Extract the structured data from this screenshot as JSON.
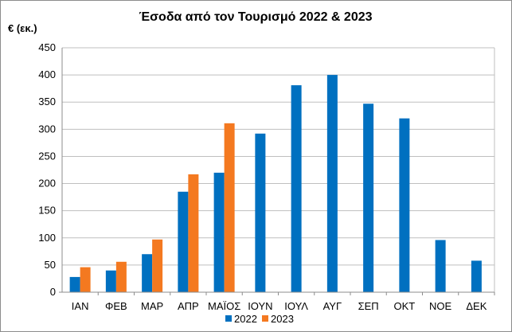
{
  "chart_data": {
    "type": "bar",
    "title": "Έσοδα από τον Τουρισμό 2022 & 2023",
    "ylabel": "€ (εκ.)",
    "xlabel": "",
    "ylim": [
      0,
      450
    ],
    "yticks": [
      0,
      50,
      100,
      150,
      200,
      250,
      300,
      350,
      400,
      450
    ],
    "grid": true,
    "legend_position": "bottom",
    "categories": [
      "ΙΑΝ",
      "ΦΕΒ",
      "ΜΑΡ",
      "ΑΠΡ",
      "ΜΑΪΟΣ",
      "ΙΟΥΝ",
      "ΙΟΥΛ",
      "ΑΥΓ",
      "ΣΕΠ",
      "ΟΚΤ",
      "ΝΟΕ",
      "ΔΕΚ"
    ],
    "series": [
      {
        "name": "2022",
        "color": "#0070c0",
        "values": [
          28,
          40,
          70,
          185,
          220,
          292,
          381,
          400,
          347,
          320,
          96,
          58
        ]
      },
      {
        "name": "2023",
        "color": "#f47920",
        "values": [
          46,
          56,
          97,
          217,
          311,
          null,
          null,
          null,
          null,
          null,
          null,
          null
        ]
      }
    ]
  }
}
